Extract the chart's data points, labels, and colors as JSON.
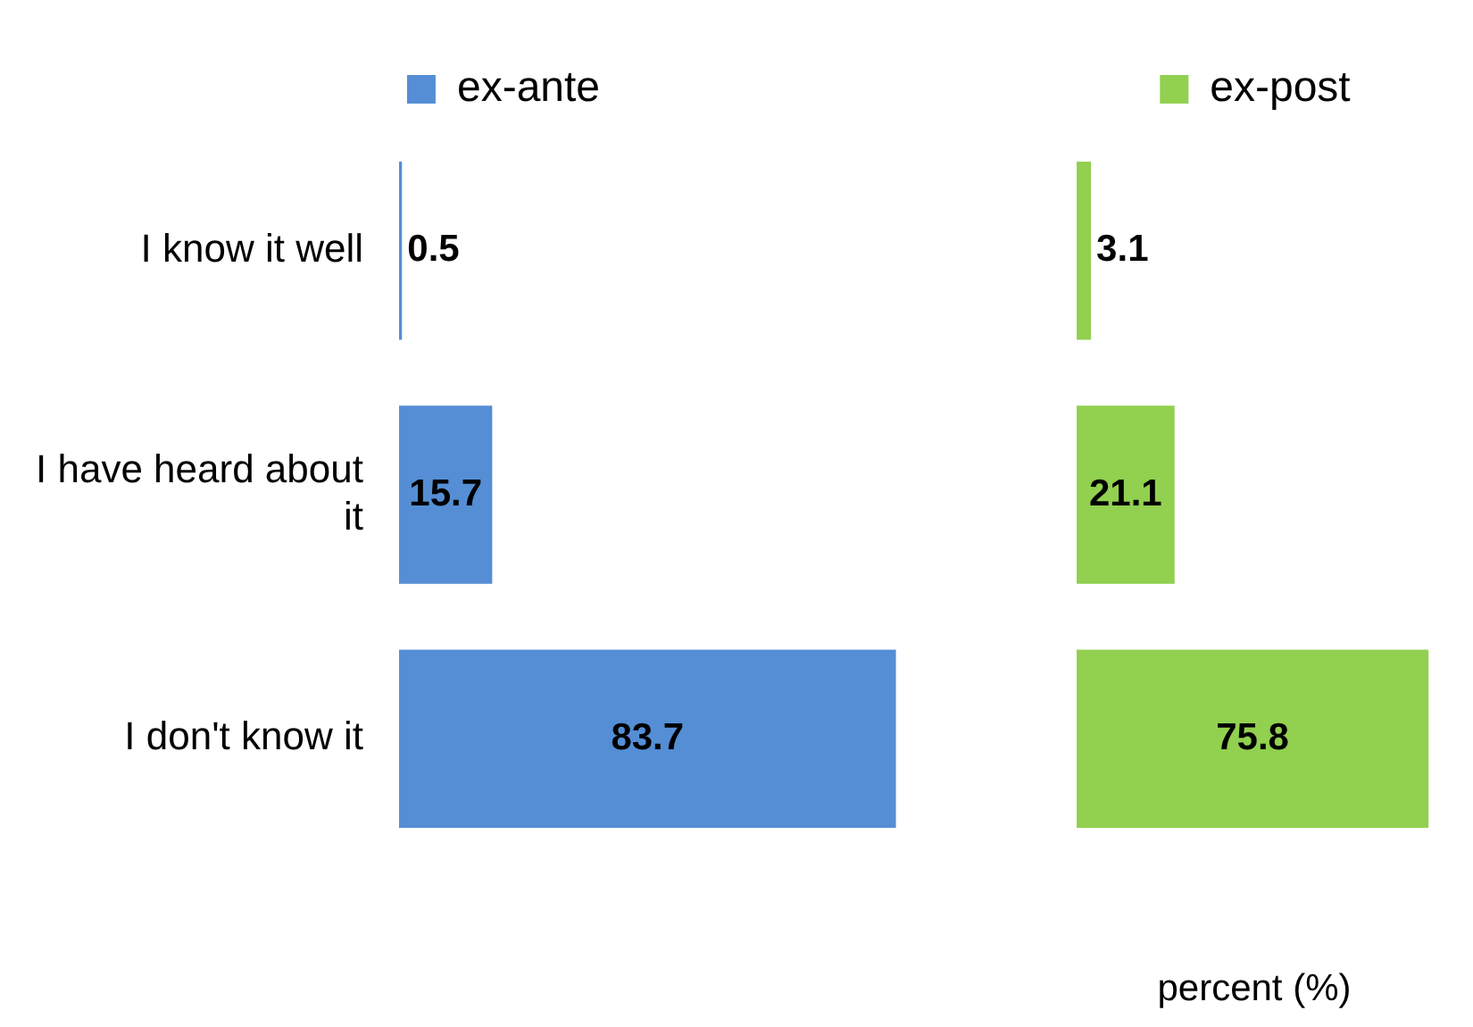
{
  "chart_data": [
    {
      "type": "bar",
      "orientation": "horizontal",
      "categories": [
        "I know it well",
        "I have heard about it",
        "I don't know it"
      ],
      "series": [
        {
          "name": "ex-ante",
          "color": "#558ed5",
          "values": [
            0.5,
            15.7,
            83.7
          ]
        }
      ],
      "data_labels": true,
      "legend": "top",
      "tick_labels": "y"
    },
    {
      "type": "bar",
      "orientation": "horizontal",
      "categories": [
        null,
        null,
        null
      ],
      "series": [
        {
          "name": "ex-post",
          "color": "#92d050",
          "values": [
            3.1,
            21.1,
            75.8
          ]
        }
      ],
      "data_labels": true,
      "legend": "top",
      "tick_labels": false,
      "xlabel": "percent (%)"
    }
  ]
}
